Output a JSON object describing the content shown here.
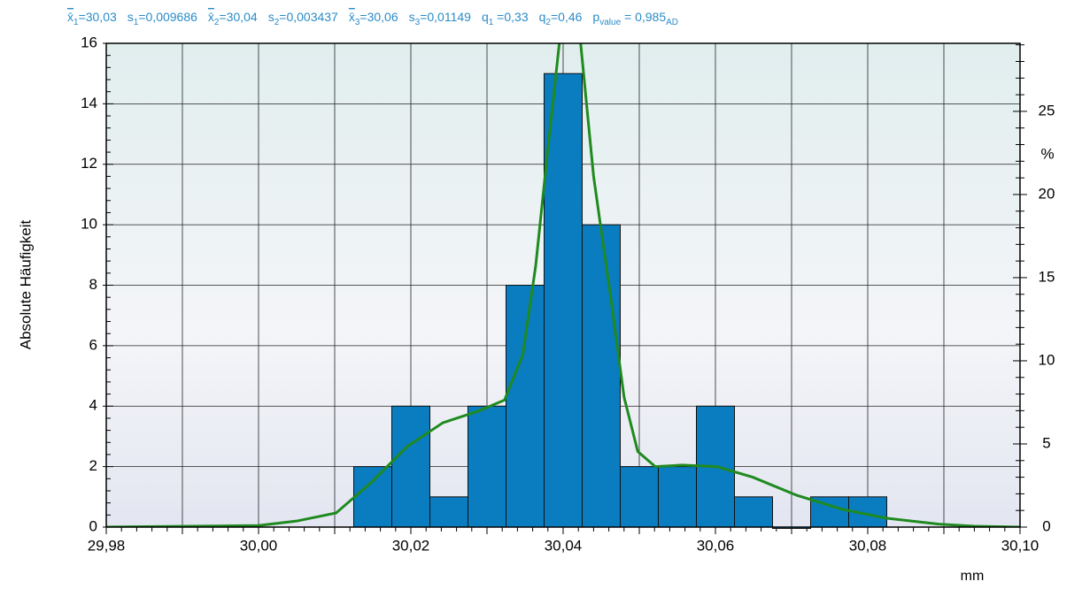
{
  "chart_data": {
    "type": "histogram",
    "stats": [
      [
        {
          "t": "x̄"
        },
        {
          "t": "1",
          "sub": true
        },
        {
          "t": "=30,03"
        }
      ],
      [
        {
          "t": "s"
        },
        {
          "t": "1",
          "sub": true
        },
        {
          "t": "=0,009686"
        }
      ],
      [
        {
          "t": "x̄"
        },
        {
          "t": "2",
          "sub": true
        },
        {
          "t": "=30,04"
        }
      ],
      [
        {
          "t": "s"
        },
        {
          "t": "2",
          "sub": true
        },
        {
          "t": "=0,003437"
        }
      ],
      [
        {
          "t": "x̄"
        },
        {
          "t": "3",
          "sub": true
        },
        {
          "t": "=30,06"
        }
      ],
      [
        {
          "t": "s"
        },
        {
          "t": "3",
          "sub": true
        },
        {
          "t": "=0,01149"
        }
      ],
      [
        {
          "t": "q"
        },
        {
          "t": "1",
          "sub": true
        },
        {
          "t": " =0,33"
        }
      ],
      [
        {
          "t": "q"
        },
        {
          "t": "2",
          "sub": true
        },
        {
          "t": "=0,46"
        }
      ],
      [
        {
          "t": "p"
        },
        {
          "t": "value",
          "sub": true
        },
        {
          "t": " = 0,985"
        },
        {
          "t": "AD",
          "sub": true
        }
      ]
    ],
    "y_label": "Absolute Häufigkeit",
    "y2_label": "%",
    "x_label": "mm",
    "bins": [
      30.0125,
      30.0175,
      30.0225,
      30.0275,
      30.0325,
      30.0375,
      30.0425,
      30.0475,
      30.0525,
      30.0575,
      30.0625,
      30.0675,
      30.0725,
      30.0775,
      30.0825
    ],
    "values": [
      2,
      4,
      1,
      4,
      8,
      15,
      10,
      2,
      2,
      4,
      1,
      0,
      1,
      1
    ],
    "color": "#0a7cc0",
    "fit": {
      "color": "#1f8a1f",
      "x": [
        29.98,
        30.0,
        30.005,
        30.0102,
        30.0149,
        30.0195,
        30.0242,
        30.0288,
        30.0323,
        30.0347,
        30.0364,
        30.0381,
        30.0395,
        30.0405,
        30.0423,
        30.044,
        30.0463,
        30.048,
        30.0498,
        30.0521,
        30.0556,
        30.0602,
        30.0649,
        30.0707,
        30.0765,
        30.0823,
        30.0893,
        30.094,
        30.1
      ],
      "values": [
        0,
        0.05,
        0.2,
        0.47,
        1.5,
        2.66,
        3.45,
        3.83,
        4.2,
        5.7,
        8.65,
        12.75,
        16,
        18.5,
        16,
        11.6,
        7.5,
        4.3,
        2.5,
        2.0,
        2.05,
        2.0,
        1.65,
        1.05,
        0.6,
        0.3,
        0.1,
        0.03,
        0
      ]
    },
    "xlim": [
      29.98,
      30.1
    ],
    "xticks": [
      {
        "value": 29.98,
        "label": "29,98"
      },
      {
        "value": 30.0,
        "label": "30,00"
      },
      {
        "value": 30.02,
        "label": "30,02"
      },
      {
        "value": 30.04,
        "label": "30,04"
      },
      {
        "value": 30.06,
        "label": "30,06"
      },
      {
        "value": 30.08,
        "label": "30,08"
      },
      {
        "value": 30.1,
        "label": "30,10"
      }
    ],
    "ylim": [
      0,
      16
    ],
    "yticks": [
      0,
      2,
      4,
      6,
      8,
      10,
      12,
      14,
      16
    ],
    "y2lim": [
      0,
      29.09
    ],
    "y2ticks": [
      0,
      5,
      10,
      15,
      20,
      25
    ],
    "grid": true
  }
}
